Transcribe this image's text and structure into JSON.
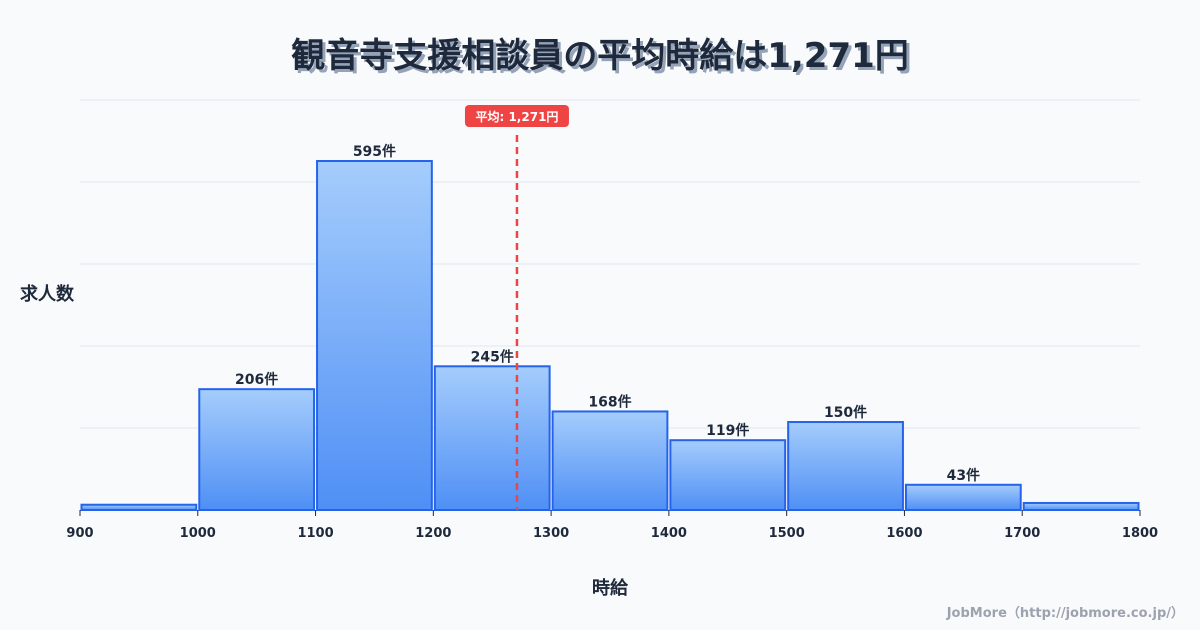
{
  "title": "観音寺支援相談員の平均時給は1,271円",
  "y_axis_label": "求人数",
  "x_axis_label": "時給",
  "credit": "JobMore（http://jobmore.co.jp/）",
  "average_marker": {
    "label": "平均: 1,271円",
    "value": 1271,
    "color": "#ef4444"
  },
  "colors": {
    "bar_fill_top": "#a5cdfc",
    "bar_fill_bottom": "#4f8ff5",
    "bar_stroke": "#2563eb",
    "grid": "#e2e8f0"
  },
  "chart_data": {
    "type": "bar",
    "title": "観音寺支援相談員の平均時給は1,271円",
    "xlabel": "時給",
    "ylabel": "求人数",
    "bins": [
      [
        900,
        1000
      ],
      [
        1000,
        1100
      ],
      [
        1100,
        1200
      ],
      [
        1200,
        1300
      ],
      [
        1300,
        1400
      ],
      [
        1400,
        1500
      ],
      [
        1500,
        1600
      ],
      [
        1600,
        1700
      ],
      [
        1700,
        1800
      ]
    ],
    "categories": [
      "900-1000",
      "1000-1100",
      "1100-1200",
      "1200-1300",
      "1300-1400",
      "1400-1500",
      "1500-1600",
      "1600-1700",
      "1700-1800"
    ],
    "values": [
      9,
      206,
      595,
      245,
      168,
      119,
      150,
      43,
      12
    ],
    "value_labels": [
      "",
      "206件",
      "595件",
      "245件",
      "168件",
      "119件",
      "150件",
      "43件",
      ""
    ],
    "x_ticks": [
      "900",
      "1000",
      "1100",
      "1200",
      "1300",
      "1400",
      "1500",
      "1600",
      "1700",
      "1800"
    ],
    "xlim": [
      900,
      1800
    ],
    "ylim": [
      0,
      700
    ],
    "grid": true,
    "mean_line": 1271,
    "legend": null
  }
}
